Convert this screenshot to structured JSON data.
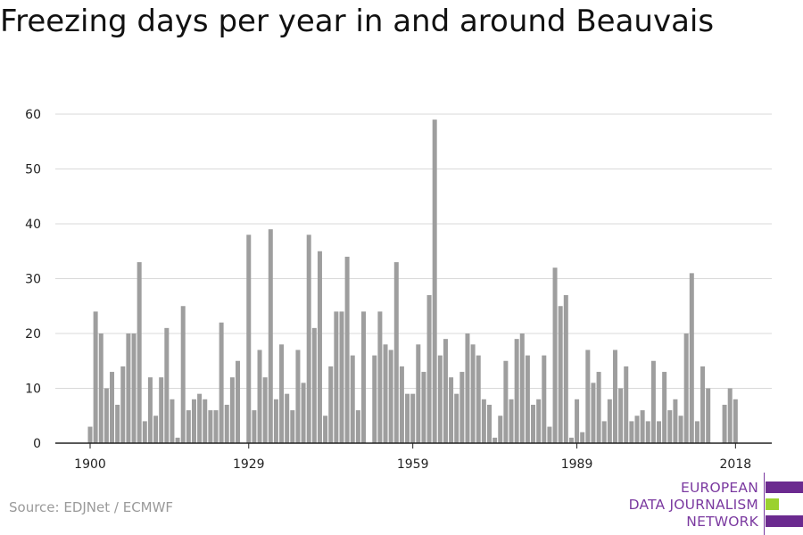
{
  "chart_data": {
    "type": "bar",
    "title": "Freezing days per year in and around Beauvais",
    "xlabel": "",
    "ylabel": "",
    "x_ticks": [
      1900,
      1929,
      1959,
      1989,
      2018
    ],
    "y_ticks": [
      0,
      10,
      20,
      30,
      40,
      50,
      60
    ],
    "ylim": [
      0,
      60
    ],
    "xlim": [
      1900,
      2018
    ],
    "grid": true,
    "bar_color": "#9e9e9e",
    "series": [
      {
        "x": [
          1900,
          1901,
          1902,
          1903,
          1904,
          1905,
          1906,
          1907,
          1908,
          1909,
          1910,
          1911,
          1912,
          1913,
          1914,
          1915,
          1916,
          1917,
          1918,
          1919,
          1920,
          1921,
          1922,
          1923,
          1924,
          1925,
          1926,
          1927,
          1928,
          1929,
          1930,
          1931,
          1932,
          1933,
          1934,
          1935,
          1936,
          1937,
          1938,
          1939,
          1940,
          1941,
          1942,
          1943,
          1944,
          1945,
          1946,
          1947,
          1948,
          1949,
          1950,
          1951,
          1952,
          1953,
          1954,
          1955,
          1956,
          1957,
          1958,
          1959,
          1960,
          1961,
          1962,
          1963,
          1964,
          1965,
          1966,
          1967,
          1968,
          1969,
          1970,
          1971,
          1972,
          1973,
          1974,
          1975,
          1976,
          1977,
          1978,
          1979,
          1980,
          1981,
          1982,
          1983,
          1984,
          1985,
          1986,
          1987,
          1988,
          1989,
          1990,
          1991,
          1992,
          1993,
          1994,
          1995,
          1996,
          1997,
          1998,
          1999,
          2000,
          2001,
          2002,
          2003,
          2004,
          2005,
          2006,
          2007,
          2008,
          2009,
          2010,
          2011,
          2012,
          2013,
          2014,
          2015,
          2016,
          2017,
          2018
        ],
        "values": [
          3,
          24,
          20,
          10,
          13,
          7,
          14,
          20,
          20,
          33,
          4,
          12,
          5,
          12,
          21,
          8,
          1,
          25,
          6,
          8,
          9,
          8,
          6,
          6,
          22,
          7,
          12,
          15,
          0,
          38,
          6,
          17,
          12,
          39,
          8,
          18,
          9,
          6,
          17,
          11,
          38,
          21,
          35,
          5,
          14,
          24,
          24,
          34,
          16,
          6,
          24,
          0,
          16,
          24,
          18,
          17,
          33,
          14,
          9,
          9,
          18,
          13,
          27,
          59,
          16,
          19,
          12,
          9,
          13,
          20,
          18,
          16,
          8,
          7,
          1,
          5,
          15,
          8,
          19,
          20,
          16,
          7,
          8,
          16,
          3,
          32,
          25,
          27,
          1,
          8,
          2,
          17,
          11,
          13,
          4,
          8,
          17,
          10,
          14,
          4,
          5,
          6,
          4,
          15,
          4,
          13,
          6,
          8,
          5,
          20,
          31,
          4,
          14,
          10,
          0,
          0,
          7,
          10,
          8
        ]
      }
    ]
  },
  "source": "Source: EDJNet / ECMWF",
  "logo": {
    "lines": [
      "EUROPEAN",
      "DATA JOURNALISM",
      "NETWORK"
    ],
    "colors": [
      "#6b2a8f",
      "#9bd12f",
      "#6b2a8f"
    ]
  }
}
